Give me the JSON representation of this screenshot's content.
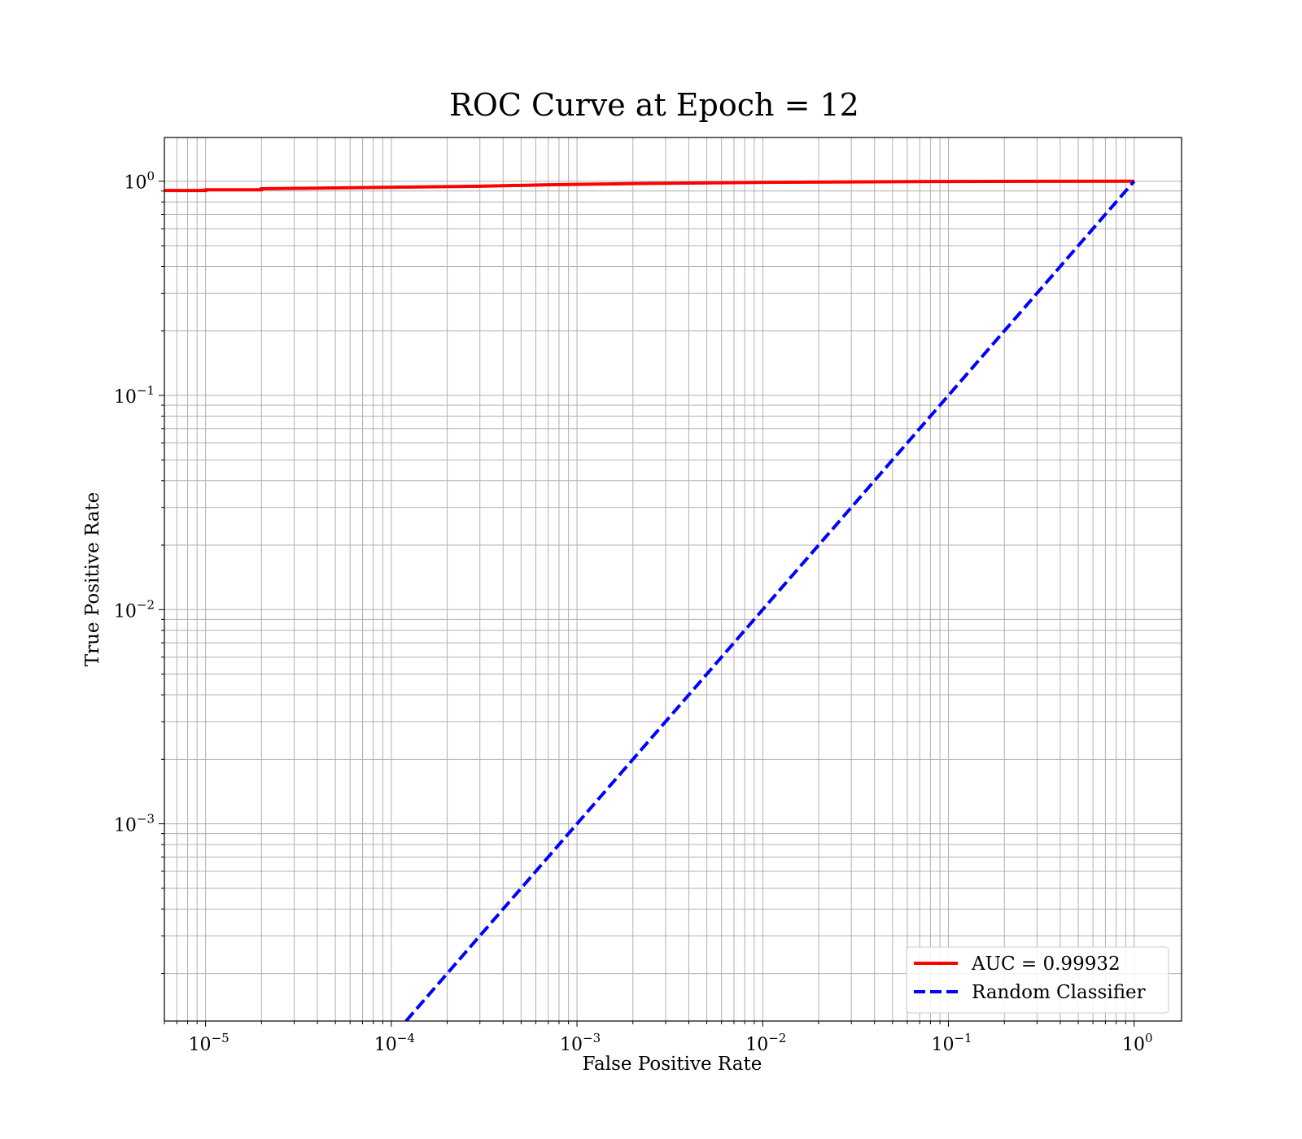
{
  "chart_data": {
    "type": "line",
    "title": "ROC Curve at Epoch = 12",
    "xlabel": "False Positive Rate",
    "ylabel": "True Positive Rate",
    "xscale": "log",
    "yscale": "log",
    "xlim": [
      6e-06,
      1.8
    ],
    "ylim": [
      0.00012,
      1.6
    ],
    "grid": true,
    "grid_which": "both",
    "legend_position": "lower-right",
    "x_ticks": [
      {
        "value": 1e-05,
        "mant": "10",
        "exp": "−5"
      },
      {
        "value": 0.0001,
        "mant": "10",
        "exp": "−4"
      },
      {
        "value": 0.001,
        "mant": "10",
        "exp": "−3"
      },
      {
        "value": 0.01,
        "mant": "10",
        "exp": "−2"
      },
      {
        "value": 0.1,
        "mant": "10",
        "exp": "−1"
      },
      {
        "value": 1,
        "mant": "10",
        "exp": "0"
      }
    ],
    "y_ticks": [
      {
        "value": 0.001,
        "mant": "10",
        "exp": "−3"
      },
      {
        "value": 0.01,
        "mant": "10",
        "exp": "−2"
      },
      {
        "value": 0.1,
        "mant": "10",
        "exp": "−1"
      },
      {
        "value": 1,
        "mant": "10",
        "exp": "0"
      }
    ],
    "series": [
      {
        "name": "AUC = 0.99932",
        "color": "#ff0000",
        "style": "solid",
        "x": [
          6e-06,
          1e-05,
          1e-05,
          2e-05,
          2e-05,
          5e-05,
          0.0001,
          0.0003,
          0.0007,
          0.002,
          0.01,
          0.1,
          1
        ],
        "y": [
          0.905,
          0.905,
          0.912,
          0.912,
          0.922,
          0.93,
          0.937,
          0.948,
          0.962,
          0.975,
          0.988,
          0.997,
          1.0
        ]
      },
      {
        "name": "Random Classifier",
        "color": "#0000ff",
        "style": "dashed",
        "x": [
          0.00012,
          1
        ],
        "y": [
          0.00012,
          1
        ]
      }
    ]
  }
}
